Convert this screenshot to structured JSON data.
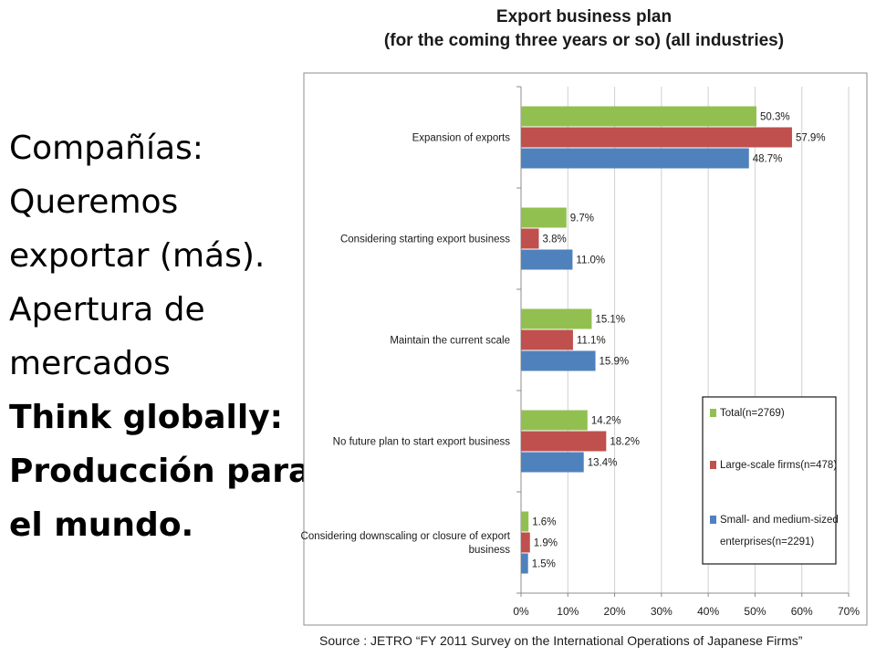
{
  "slide": {
    "lines": [
      "Compañías:",
      "Queremos",
      "exportar (más).",
      "Apertura de",
      "mercados"
    ],
    "bold_lines": [
      "Think globally:",
      "Producción para",
      "el mundo."
    ]
  },
  "source": {
    "text": "Source : JETRO “FY 2011 Survey on the International Operations of Japanese Firms”"
  },
  "chart_data": {
    "type": "bar",
    "orientation": "horizontal",
    "title": "Export business plan",
    "subtitle": "(for the coming three years or so) (all industries)",
    "categories": [
      "Expansion of exports",
      "Considering starting  export business",
      "Maintain the current scale",
      "No future plan to start export business",
      "Considering downscaling or closure of export business"
    ],
    "category_label_lines": [
      [
        "Expansion of exports"
      ],
      [
        "Considering starting  export business"
      ],
      [
        "Maintain the current scale"
      ],
      [
        "No future plan to start export business"
      ],
      [
        "Considering downscaling or closure of export",
        "business"
      ]
    ],
    "series": [
      {
        "name": "Total(n=2769)",
        "color": "#92c050",
        "values": [
          50.3,
          9.7,
          15.1,
          14.2,
          1.6
        ],
        "labels": [
          "50.3%",
          "9.7%",
          "15.1%",
          "14.2%",
          "1.6%"
        ]
      },
      {
        "name": "Large-scale firms(n=478)",
        "color": "#c0504d",
        "values": [
          57.9,
          3.8,
          11.1,
          18.2,
          1.9
        ],
        "labels": [
          "57.9%",
          "3.8%",
          "11.1%",
          "18.2%",
          "1.9%"
        ]
      },
      {
        "name": "Small- and medium-sized enterprises(n=2291)",
        "color": "#4f81bd",
        "values": [
          48.7,
          11.0,
          15.9,
          13.4,
          1.5
        ],
        "labels": [
          "48.7%",
          "11.0%",
          "15.9%",
          "13.4%",
          "1.5%"
        ]
      }
    ],
    "legend_lines": [
      [
        "Total(n=2769)"
      ],
      [
        "Large-scale firms(n=478)"
      ],
      [
        "Small- and medium-sized",
        "enterprises(n=2291)"
      ]
    ],
    "xlim": [
      0,
      70
    ],
    "x_ticks": [
      "0%",
      "10%",
      "20%",
      "30%",
      "40%",
      "50%",
      "60%",
      "70%"
    ],
    "grid": true,
    "legend_position": "bottom-right"
  }
}
